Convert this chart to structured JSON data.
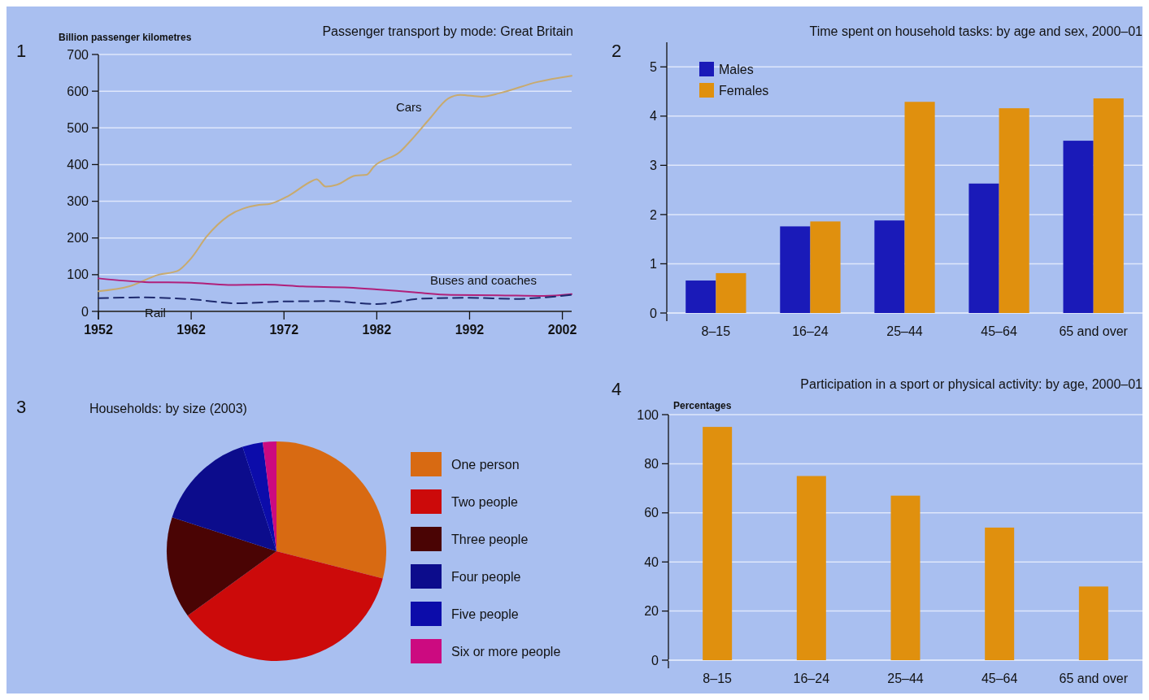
{
  "chart_data": [
    {
      "type": "line",
      "title": "Passenger transport by mode: Great Britain",
      "ylabel": "Billion passenger kilometres",
      "annotations": [
        "1"
      ],
      "xlim": [
        1952,
        2003
      ],
      "xticks": [
        1952,
        1962,
        1972,
        1982,
        1992,
        2002
      ],
      "ylim": [
        0,
        700
      ],
      "yticks": [
        0,
        100,
        200,
        300,
        400,
        500,
        600,
        700
      ],
      "grid": "y",
      "legend": false,
      "series": [
        {
          "name": "Cars",
          "color": "#c8aa6e",
          "line_style": "solid",
          "x": [
            1952,
            1955.3,
            1958.5,
            1960.5,
            1962,
            1963.7,
            1966,
            1969.3,
            1970.5,
            1972.5,
            1975,
            1975.5,
            1976.5,
            1977.7,
            1979.7,
            1980.9,
            1981.7,
            1984.5,
            1986,
            1987.7,
            1989.7,
            1991,
            1993.3,
            1995.3,
            1999.3,
            2003
          ],
          "values": [
            55,
            68,
            100,
            110,
            145,
            205,
            260,
            290,
            293,
            315,
            355,
            360,
            340,
            345,
            370,
            372,
            395,
            435,
            475,
            525,
            580,
            590,
            585,
            595,
            625,
            642
          ]
        },
        {
          "name": "Buses and coaches",
          "color": "#b0207a",
          "line_style": "solid",
          "x": [
            1952,
            1957,
            1962,
            1966,
            1970,
            1974,
            1979,
            1982,
            1986,
            1990,
            1995,
            2000,
            2003
          ],
          "values": [
            90,
            80,
            78,
            72,
            73,
            68,
            65,
            60,
            52,
            45,
            44,
            42,
            47
          ]
        },
        {
          "name": "Rail",
          "color": "#1e2a6e",
          "line_style": "dashed",
          "x": [
            1952,
            1957,
            1962,
            1967,
            1972,
            1977,
            1982,
            1987,
            1992,
            1997,
            2000,
            2003
          ],
          "values": [
            36,
            38,
            33,
            22,
            27,
            28,
            20,
            35,
            37,
            34,
            38,
            45
          ]
        }
      ]
    },
    {
      "type": "bar",
      "title": "Time spent on household tasks: by age and sex, 2000–01",
      "annotations": [
        "2"
      ],
      "categories": [
        "8–15",
        "16–24",
        "25–44",
        "45–64",
        "65 and over"
      ],
      "ylim": [
        0,
        5.5
      ],
      "yticks": [
        0,
        1,
        2,
        3,
        4,
        5
      ],
      "grid": "y",
      "legend": "top left",
      "series": [
        {
          "name": "Males",
          "color": "#1a1ab8",
          "values": [
            0.66,
            1.76,
            1.88,
            2.63,
            3.5
          ]
        },
        {
          "name": "Females",
          "color": "#e0900e",
          "values": [
            0.81,
            1.86,
            4.29,
            4.16,
            4.36
          ]
        }
      ]
    },
    {
      "type": "pie",
      "title": "Households: by size (2003)",
      "annotations": [
        "3"
      ],
      "legend": "right",
      "categories": [
        "One person",
        "Two people",
        "Three people",
        "Four people",
        "Five people",
        "Six or more people"
      ],
      "values": [
        29,
        36,
        15,
        15,
        3,
        2
      ],
      "colors": [
        "#d86a12",
        "#cc0a0a",
        "#4a0404",
        "#0c0c8c",
        "#0c0caa",
        "#cc0a80"
      ]
    },
    {
      "type": "bar",
      "title": "Participation in a sport or physical activity: by age, 2000–01",
      "ylabel": "Percentages",
      "annotations": [
        "4"
      ],
      "categories": [
        "8–15",
        "16–24",
        "25–44",
        "45–64",
        "65 and over"
      ],
      "ylim": [
        0,
        100
      ],
      "yticks": [
        0,
        20,
        40,
        60,
        80,
        100
      ],
      "grid": "y",
      "legend": false,
      "series": [
        {
          "color": "#e0900e",
          "values": [
            95,
            75,
            67,
            54,
            30
          ]
        }
      ]
    }
  ]
}
